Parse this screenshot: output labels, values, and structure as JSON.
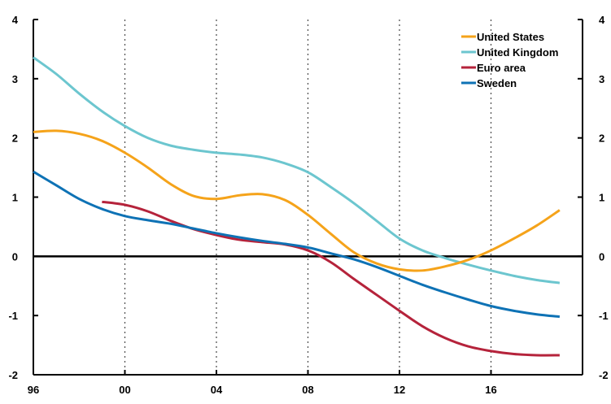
{
  "chart_data": {
    "type": "line",
    "title": "",
    "xlabel": "",
    "ylabel": "",
    "x_ticks": [
      "96",
      "00",
      "04",
      "08",
      "12",
      "16"
    ],
    "y_ticks": [
      "4",
      "3",
      "2",
      "1",
      "0",
      "-1",
      "-2"
    ],
    "xlim": [
      1996,
      2020
    ],
    "ylim": [
      -2,
      4
    ],
    "grid": "vertical",
    "legend_position": "top-right",
    "series": [
      {
        "name": "United States",
        "color": "#F5A31A",
        "x": [
          1996,
          1997,
          1998,
          1999,
          2000,
          2001,
          2002,
          2003,
          2004,
          2005,
          2006,
          2007,
          2008,
          2009,
          2010,
          2011,
          2012,
          2013,
          2014,
          2015,
          2016,
          2017,
          2018,
          2019
        ],
        "values": [
          2.1,
          2.12,
          2.07,
          1.95,
          1.75,
          1.5,
          1.22,
          1.02,
          0.97,
          1.03,
          1.05,
          0.95,
          0.7,
          0.38,
          0.07,
          -0.12,
          -0.22,
          -0.24,
          -0.17,
          -0.06,
          0.1,
          0.3,
          0.52,
          0.78
        ]
      },
      {
        "name": "United Kingdom",
        "color": "#6CC6CF",
        "x": [
          1996,
          1997,
          1998,
          1999,
          2000,
          2001,
          2002,
          2003,
          2004,
          2005,
          2006,
          2007,
          2008,
          2009,
          2010,
          2011,
          2012,
          2013,
          2014,
          2015,
          2016,
          2017,
          2018,
          2019
        ],
        "values": [
          3.36,
          3.08,
          2.75,
          2.45,
          2.2,
          2.0,
          1.87,
          1.8,
          1.75,
          1.72,
          1.67,
          1.57,
          1.42,
          1.17,
          0.9,
          0.6,
          0.3,
          0.1,
          -0.03,
          -0.14,
          -0.24,
          -0.33,
          -0.4,
          -0.45
        ]
      },
      {
        "name": "Euro area",
        "color": "#B5233B",
        "x": [
          1999,
          2000,
          2001,
          2002,
          2003,
          2004,
          2005,
          2006,
          2007,
          2008,
          2009,
          2010,
          2011,
          2012,
          2013,
          2014,
          2015,
          2016,
          2017,
          2018,
          2019
        ],
        "values": [
          0.92,
          0.87,
          0.76,
          0.6,
          0.46,
          0.36,
          0.28,
          0.24,
          0.2,
          0.1,
          -0.1,
          -0.38,
          -0.65,
          -0.92,
          -1.18,
          -1.38,
          -1.52,
          -1.6,
          -1.65,
          -1.67,
          -1.67
        ]
      },
      {
        "name": "Sweden",
        "color": "#0E72B5",
        "x": [
          1996,
          1997,
          1998,
          1999,
          2000,
          2001,
          2002,
          2003,
          2004,
          2005,
          2006,
          2007,
          2008,
          2009,
          2010,
          2011,
          2012,
          2013,
          2014,
          2015,
          2016,
          2017,
          2018,
          2019
        ],
        "values": [
          1.43,
          1.2,
          0.97,
          0.8,
          0.68,
          0.61,
          0.55,
          0.47,
          0.39,
          0.32,
          0.26,
          0.21,
          0.15,
          0.05,
          -0.05,
          -0.18,
          -0.33,
          -0.48,
          -0.61,
          -0.73,
          -0.84,
          -0.92,
          -0.98,
          -1.02
        ]
      }
    ]
  }
}
